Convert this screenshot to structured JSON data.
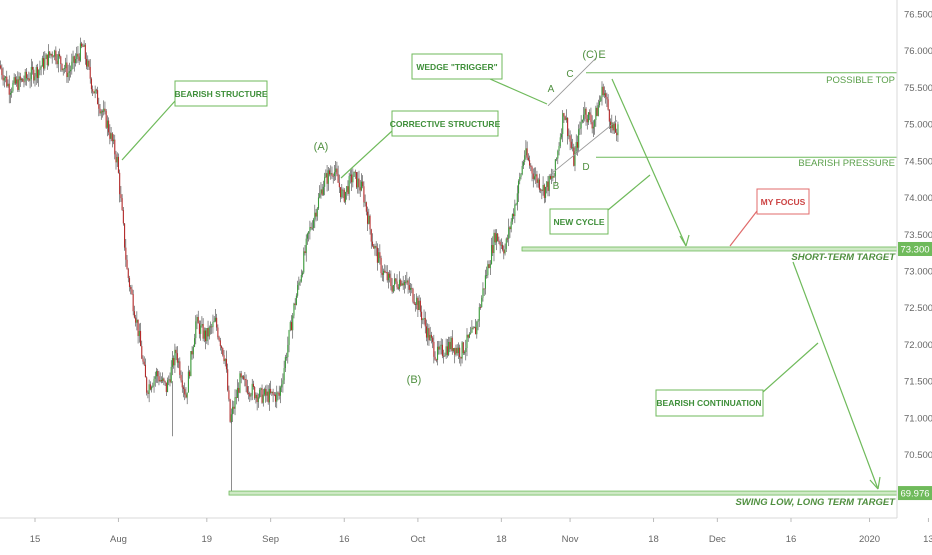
{
  "chart_data": {
    "type": "candlestick",
    "instrument": "",
    "y_axis": {
      "ticks": [
        76.5,
        76.0,
        75.5,
        75.0,
        74.5,
        74.0,
        73.5,
        73.0,
        72.5,
        72.0,
        71.5,
        71.0,
        70.5
      ],
      "tick_labels": [
        "76.500",
        "76.000",
        "75.500",
        "75.000",
        "74.500",
        "74.000",
        "73.500",
        "73.000",
        "72.500",
        "72.000",
        "71.500",
        "71.000",
        "70.500"
      ],
      "range": [
        69.65,
        76.65
      ],
      "price_tags": [
        {
          "label": "73.300",
          "value": 73.3
        },
        {
          "label": "69.976",
          "value": 69.976
        }
      ]
    },
    "x_axis": {
      "tick_labels": [
        "15",
        "Aug",
        "19",
        "Sep",
        "16",
        "Oct",
        "18",
        "Nov",
        "18",
        "Dec",
        "16",
        "2020",
        "13"
      ],
      "tick_dates": [
        "2019-07-15",
        "2019-08-01",
        "2019-08-19",
        "2019-09-01",
        "2019-09-16",
        "2019-10-01",
        "2019-10-18",
        "2019-11-01",
        "2019-11-18",
        "2019-12-01",
        "2019-12-16",
        "2020-01-01",
        "2020-01-13"
      ]
    },
    "price_path": [
      {
        "d": "2019-07-08",
        "p": 75.8
      },
      {
        "d": "2019-07-10",
        "p": 75.5
      },
      {
        "d": "2019-07-13",
        "p": 75.6
      },
      {
        "d": "2019-07-16",
        "p": 75.75
      },
      {
        "d": "2019-07-19",
        "p": 76.0
      },
      {
        "d": "2019-07-22",
        "p": 75.7
      },
      {
        "d": "2019-07-25",
        "p": 76.05
      },
      {
        "d": "2019-07-27",
        "p": 75.5
      },
      {
        "d": "2019-07-30",
        "p": 75.0
      },
      {
        "d": "2019-08-01",
        "p": 74.5
      },
      {
        "d": "2019-08-03",
        "p": 73.0
      },
      {
        "d": "2019-08-05",
        "p": 72.3
      },
      {
        "d": "2019-08-07",
        "p": 71.4
      },
      {
        "d": "2019-08-09",
        "p": 71.6
      },
      {
        "d": "2019-08-11",
        "p": 71.4
      },
      {
        "d": "2019-08-13",
        "p": 71.9
      },
      {
        "d": "2019-08-15",
        "p": 71.3
      },
      {
        "d": "2019-08-17",
        "p": 72.3
      },
      {
        "d": "2019-08-19",
        "p": 72.1
      },
      {
        "d": "2019-08-21",
        "p": 72.3
      },
      {
        "d": "2019-08-23",
        "p": 71.8
      },
      {
        "d": "2019-08-24",
        "p": 70.95
      },
      {
        "d": "2019-08-26",
        "p": 71.5
      },
      {
        "d": "2019-08-30",
        "p": 71.3
      },
      {
        "d": "2019-09-03",
        "p": 71.3
      },
      {
        "d": "2019-09-06",
        "p": 72.5
      },
      {
        "d": "2019-09-09",
        "p": 73.5
      },
      {
        "d": "2019-09-12",
        "p": 74.2
      },
      {
        "d": "2019-09-14",
        "p": 74.4
      },
      {
        "d": "2019-09-16",
        "p": 74.0
      },
      {
        "d": "2019-09-18",
        "p": 74.3
      },
      {
        "d": "2019-09-20",
        "p": 74.1
      },
      {
        "d": "2019-09-22",
        "p": 73.4
      },
      {
        "d": "2019-09-24",
        "p": 73.0
      },
      {
        "d": "2019-09-26",
        "p": 72.8
      },
      {
        "d": "2019-09-28",
        "p": 72.9
      },
      {
        "d": "2019-10-01",
        "p": 72.6
      },
      {
        "d": "2019-10-03",
        "p": 72.2
      },
      {
        "d": "2019-10-05",
        "p": 71.85
      },
      {
        "d": "2019-10-08",
        "p": 72.0
      },
      {
        "d": "2019-10-10",
        "p": 71.9
      },
      {
        "d": "2019-10-13",
        "p": 72.2
      },
      {
        "d": "2019-10-15",
        "p": 72.9
      },
      {
        "d": "2019-10-17",
        "p": 73.5
      },
      {
        "d": "2019-10-19",
        "p": 73.3
      },
      {
        "d": "2019-10-21",
        "p": 73.9
      },
      {
        "d": "2019-10-23",
        "p": 74.6
      },
      {
        "d": "2019-10-25",
        "p": 74.3
      },
      {
        "d": "2019-10-27",
        "p": 74.1
      },
      {
        "d": "2019-10-29",
        "p": 74.3
      },
      {
        "d": "2019-10-31",
        "p": 75.2
      },
      {
        "d": "2019-11-02",
        "p": 74.5
      },
      {
        "d": "2019-11-04",
        "p": 75.2
      },
      {
        "d": "2019-11-06",
        "p": 75.0
      },
      {
        "d": "2019-11-08",
        "p": 75.5
      },
      {
        "d": "2019-11-09",
        "p": 75.2
      },
      {
        "d": "2019-11-10",
        "p": 74.9
      }
    ]
  },
  "annotations": {
    "wave_labels": [
      {
        "text": "(A)",
        "id": "wave-label-a-paren"
      },
      {
        "text": "(B)",
        "id": "wave-label-b-paren"
      },
      {
        "text": "A",
        "id": "wave-label-a"
      },
      {
        "text": "B",
        "id": "wave-label-b"
      },
      {
        "text": "C",
        "id": "wave-label-c"
      },
      {
        "text": "D",
        "id": "wave-label-d"
      },
      {
        "text": "(C)",
        "id": "wave-label-c-paren"
      },
      {
        "text": "E",
        "id": "wave-label-e"
      }
    ],
    "callouts": [
      {
        "text": "BEARISH STRUCTURE",
        "id": "callout-bearish-structure"
      },
      {
        "text": "CORRECTIVE STRUCTURE",
        "id": "callout-corrective-structure"
      },
      {
        "text": "WEDGE \"TRIGGER\"",
        "id": "callout-wedge-trigger"
      },
      {
        "text": "NEW CYCLE",
        "id": "callout-new-cycle"
      },
      {
        "text": "MY FOCUS",
        "id": "callout-my-focus"
      },
      {
        "text": "BEARISH CONTINUATION",
        "id": "callout-bearish-continuation"
      }
    ],
    "level_labels": [
      {
        "text": "POSSIBLE TOP",
        "value": 75.7,
        "italic": false
      },
      {
        "text": "BEARISH PRESSURE",
        "value": 74.55,
        "italic": false
      },
      {
        "text": "SHORT-TERM TARGET",
        "value": 73.3,
        "italic": true
      },
      {
        "text": "SWING LOW, LONG TERM TARGET",
        "value": 69.976,
        "italic": true
      }
    ]
  },
  "colors": {
    "bull": "#3a9c3a",
    "bear": "#b52a2a",
    "wick": "#444444",
    "annotation_green": "#6fba5b",
    "annotation_red": "#e06b6b",
    "axis_text": "#666666",
    "price_tag_bg": "#6fba5b",
    "price_tag_text": "#ffffff"
  }
}
